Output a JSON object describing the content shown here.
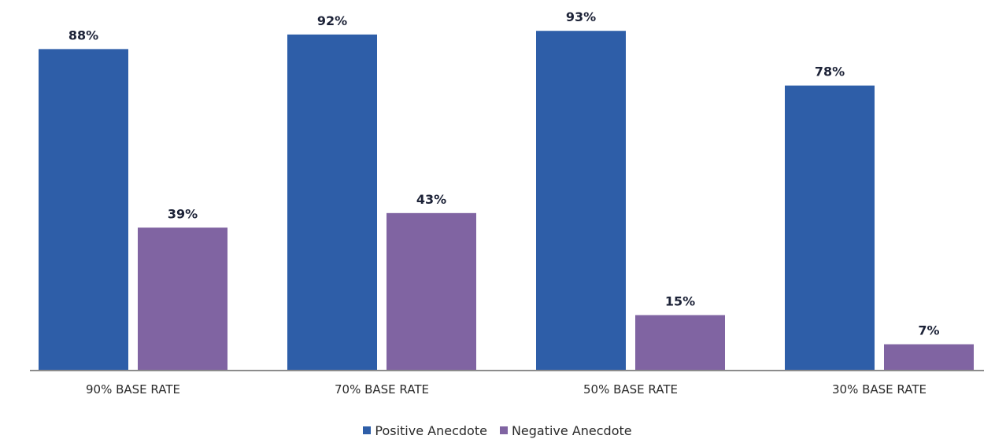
{
  "chart_data": {
    "type": "bar",
    "title": "",
    "xlabel": "",
    "ylabel": "",
    "categories": [
      "90% BASE RATE",
      "70% BASE RATE",
      "50% BASE RATE",
      "30% BASE RATE"
    ],
    "series": [
      {
        "name": "Positive Anecdote",
        "values": [
          88,
          92,
          93,
          78
        ],
        "labels": [
          "88%",
          "92%",
          "93%",
          "78%"
        ],
        "color": "#2e5ea8"
      },
      {
        "name": "Negative Anecdote",
        "values": [
          39,
          43,
          15,
          7
        ],
        "labels": [
          "39%",
          "43%",
          "15%",
          "7%"
        ],
        "color": "#8064a2"
      }
    ],
    "ylim": [
      0,
      100
    ],
    "grid": false,
    "legend_position": "bottom-center"
  }
}
